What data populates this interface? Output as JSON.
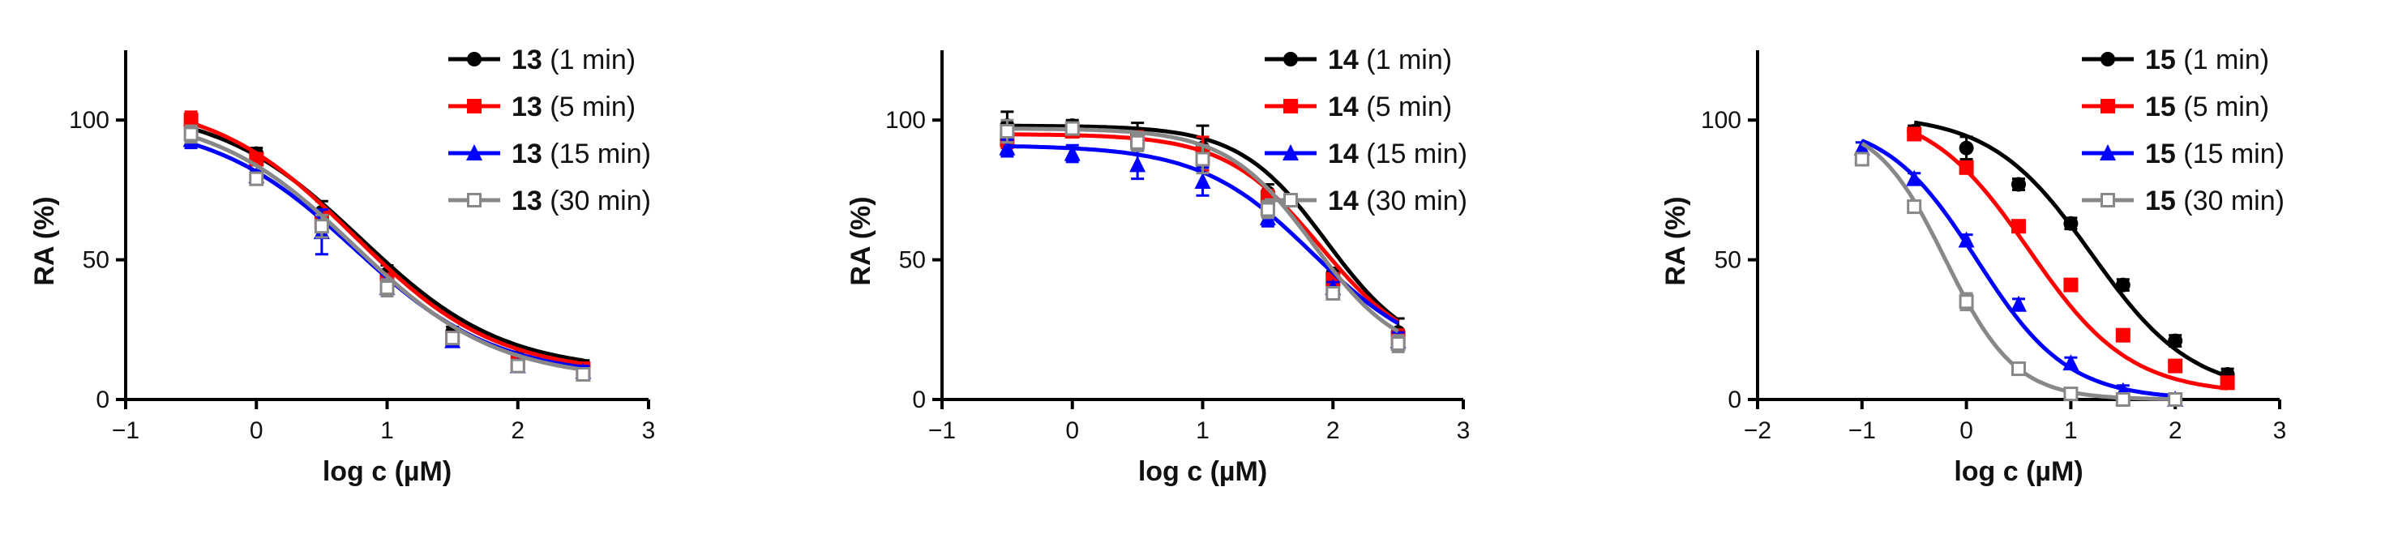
{
  "chart_data": [
    {
      "type": "line",
      "xlabel": "log c (µM)",
      "ylabel": "RA (%)",
      "xlim": [
        -1,
        3
      ],
      "ylim": [
        0,
        125
      ],
      "xticks": [
        -1,
        0,
        1,
        2,
        3
      ],
      "xtick_labels": [
        "−1",
        "0",
        "1",
        "2",
        "3"
      ],
      "yticks": [
        0,
        50,
        100
      ],
      "ytick_labels": [
        "0",
        "50",
        "100"
      ],
      "legend": "top-right",
      "x": [
        -0.5,
        0,
        0.5,
        1,
        1.5,
        2,
        2.5
      ],
      "series": [
        {
          "name": "13",
          "suffix": " (1 min)",
          "color": "#000000",
          "marker": "circle",
          "values": [
            98,
            88,
            67,
            45,
            24,
            15,
            12
          ],
          "errors": [
            3,
            2,
            4,
            3,
            2,
            2,
            2
          ],
          "fit": {
            "bottom": 10,
            "top": 105,
            "logEC50": 0.8,
            "hill": 0.8
          }
        },
        {
          "name": "13",
          "suffix": " (5 min)",
          "color": "#ff0000",
          "marker": "square",
          "values": [
            100,
            86,
            64,
            42,
            22,
            13,
            11
          ],
          "errors": [
            3,
            2,
            3,
            3,
            2,
            2,
            2
          ],
          "fit": {
            "bottom": 9,
            "top": 108,
            "logEC50": 0.75,
            "hill": 0.8
          }
        },
        {
          "name": "13",
          "suffix": " (15 min)",
          "color": "#0000ff",
          "marker": "triangle",
          "values": [
            93,
            80,
            60,
            40,
            21,
            12,
            10
          ],
          "errors": [
            3,
            2,
            8,
            3,
            2,
            2,
            2
          ],
          "fit": {
            "bottom": 8,
            "top": 100,
            "logEC50": 0.75,
            "hill": 0.8
          }
        },
        {
          "name": "13",
          "suffix": " (30 min)",
          "color": "#888888",
          "marker": "square-open",
          "values": [
            95,
            79,
            62,
            40,
            22,
            12,
            9
          ],
          "errors": [
            3,
            2,
            4,
            3,
            2,
            2,
            2
          ],
          "fit": {
            "bottom": 7,
            "top": 103,
            "logEC50": 0.75,
            "hill": 0.8
          }
        }
      ]
    },
    {
      "type": "line",
      "xlabel": "log c (µM)",
      "ylabel": "RA (%)",
      "xlim": [
        -1,
        3
      ],
      "ylim": [
        0,
        125
      ],
      "xticks": [
        -1,
        0,
        1,
        2,
        3
      ],
      "xtick_labels": [
        "−1",
        "0",
        "1",
        "2",
        "3"
      ],
      "yticks": [
        0,
        50,
        100
      ],
      "ytick_labels": [
        "0",
        "50",
        "100"
      ],
      "legend": "top-right",
      "x": [
        -0.5,
        0,
        0.5,
        1,
        1.5,
        2,
        2.5
      ],
      "series": [
        {
          "name": "14",
          "suffix": " (1 min)",
          "color": "#000000",
          "marker": "circle",
          "values": [
            98,
            98,
            95,
            90,
            74,
            45,
            24
          ],
          "errors": [
            5,
            2,
            4,
            8,
            3,
            2,
            5
          ],
          "fit": {
            "bottom": 15,
            "top": 98,
            "logEC50": 1.95,
            "hill": 1.3
          }
        },
        {
          "name": "14",
          "suffix": " (5 min)",
          "color": "#ff0000",
          "marker": "square",
          "values": [
            93,
            96,
            93,
            88,
            72,
            43,
            22
          ],
          "errors": [
            3,
            2,
            3,
            6,
            3,
            2,
            3
          ],
          "fit": {
            "bottom": 15,
            "top": 95,
            "logEC50": 1.9,
            "hill": 1.2
          }
        },
        {
          "name": "14",
          "suffix": " (15 min)",
          "color": "#0000ff",
          "marker": "triangle",
          "values": [
            90,
            88,
            84,
            78,
            65,
            40,
            21
          ],
          "errors": [
            3,
            3,
            5,
            5,
            3,
            2,
            3
          ],
          "fit": {
            "bottom": 13,
            "top": 91,
            "logEC50": 1.85,
            "hill": 1.0
          }
        },
        {
          "name": "14",
          "suffix": " (30 min)",
          "color": "#888888",
          "marker": "square-open",
          "values": [
            96,
            97,
            92,
            86,
            68,
            38,
            20
          ],
          "errors": [
            4,
            2,
            3,
            5,
            3,
            2,
            3
          ],
          "fit": {
            "bottom": 14,
            "top": 97,
            "logEC50": 1.85,
            "hill": 1.3
          }
        }
      ]
    },
    {
      "type": "line",
      "xlabel": "log c (µM)",
      "ylabel": "RA (%)",
      "xlim": [
        -2,
        3
      ],
      "ylim": [
        0,
        125
      ],
      "xticks": [
        -2,
        -1,
        0,
        1,
        2,
        3
      ],
      "xtick_labels": [
        "−2",
        "−1",
        "0",
        "1",
        "2",
        "3"
      ],
      "yticks": [
        0,
        50,
        100
      ],
      "ytick_labels": [
        "0",
        "50",
        "100"
      ],
      "legend": "top-right",
      "series": [
        {
          "name": "15",
          "suffix": " (1 min)",
          "color": "#000000",
          "marker": "circle",
          "x": [
            -0.5,
            0,
            0.5,
            1,
            1.5,
            2,
            2.5
          ],
          "values": [
            96,
            90,
            77,
            63,
            41,
            21,
            9
          ],
          "errors": [
            2,
            4,
            2,
            2,
            2,
            2,
            2
          ],
          "fit": {
            "bottom": 2,
            "top": 102,
            "logEC50": 1.2,
            "hill": 0.9
          }
        },
        {
          "name": "15",
          "suffix": " (5 min)",
          "color": "#ff0000",
          "marker": "square",
          "x": [
            -0.5,
            0,
            0.5,
            1,
            1.5,
            2,
            2.5
          ],
          "values": [
            95,
            83,
            62,
            41,
            23,
            12,
            6
          ],
          "errors": [
            2,
            2,
            2,
            2,
            2,
            2,
            2
          ],
          "fit": {
            "bottom": 2,
            "top": 105,
            "logEC50": 0.6,
            "hill": 0.9
          }
        },
        {
          "name": "15",
          "suffix": " (15 min)",
          "color": "#0000ff",
          "marker": "triangle",
          "x": [
            -1,
            -0.5,
            0,
            0.5,
            1,
            1.5,
            2
          ],
          "values": [
            90,
            79,
            57,
            34,
            13,
            3,
            0
          ],
          "errors": [
            2,
            2,
            2,
            2,
            2,
            2,
            2
          ],
          "fit": {
            "bottom": 0,
            "top": 100,
            "logEC50": 0.1,
            "hill": 1.0
          }
        },
        {
          "name": "15",
          "suffix": " (30 min)",
          "color": "#888888",
          "marker": "square-open",
          "x": [
            -1,
            -0.5,
            0,
            0.5,
            1,
            1.5,
            2
          ],
          "values": [
            86,
            69,
            35,
            11,
            2,
            0,
            0
          ],
          "errors": [
            2,
            2,
            3,
            2,
            2,
            2,
            2
          ],
          "fit": {
            "bottom": 0,
            "top": 100,
            "logEC50": -0.2,
            "hill": 1.3
          }
        }
      ]
    }
  ]
}
